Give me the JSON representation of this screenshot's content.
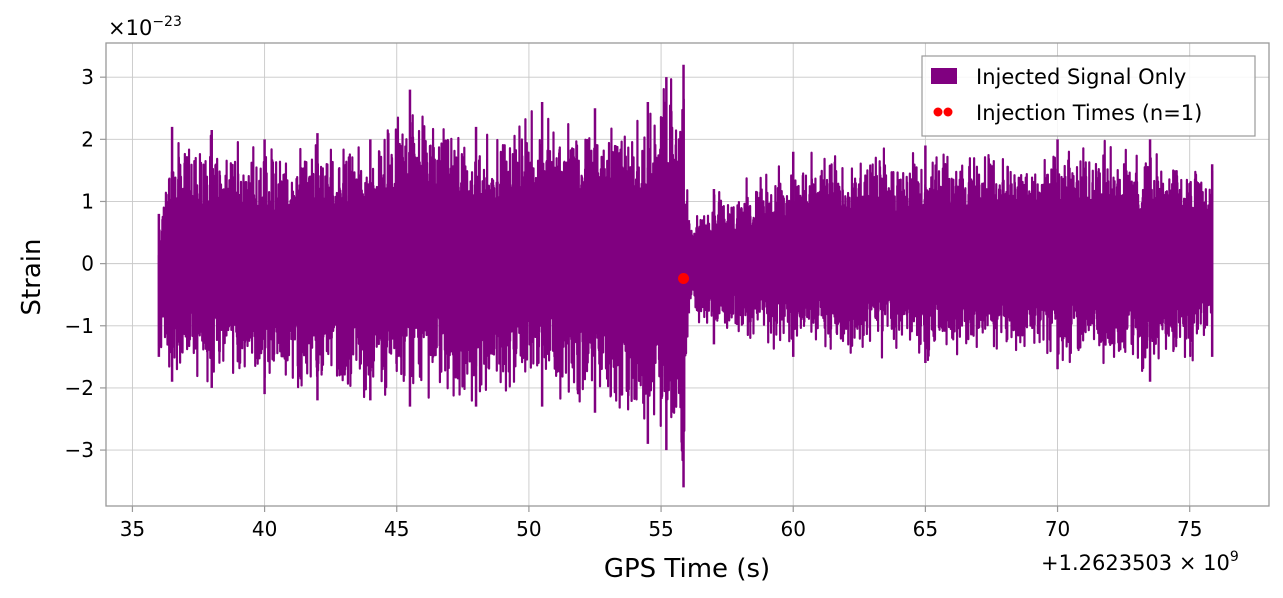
{
  "chart_data": {
    "type": "line",
    "title": "",
    "xlabel": "GPS Time (s)",
    "ylabel": "Strain",
    "xlim": [
      34,
      78
    ],
    "ylim": [
      -3.9,
      3.55
    ],
    "grid": true,
    "x_ticks": [
      35,
      40,
      45,
      50,
      55,
      60,
      65,
      70,
      75
    ],
    "x_tick_labels": [
      "35",
      "40",
      "45",
      "50",
      "55",
      "60",
      "65",
      "70",
      "75"
    ],
    "y_ticks": [
      3,
      2,
      1,
      0,
      -1,
      -2,
      -3
    ],
    "y_tick_labels": [
      "3",
      "2",
      "1",
      "0",
      "−1",
      "−2",
      "−3"
    ],
    "y_multiplier": {
      "base": "×10",
      "exp": "−23"
    },
    "x_offset": {
      "base": "+1.2623503 × 10",
      "exp": "9"
    },
    "legend_placement": "top-right",
    "series": [
      {
        "name": "Injected Signal Only",
        "color": "#800080",
        "x_range": [
          36.0,
          75.85
        ],
        "envelope": [
          {
            "x": 36.0,
            "ymin": -1.5,
            "ymax": 0.8
          },
          {
            "x": 36.5,
            "ymin": -1.9,
            "ymax": 2.2
          },
          {
            "x": 38.0,
            "ymin": -2.0,
            "ymax": 2.15
          },
          {
            "x": 40.0,
            "ymin": -2.1,
            "ymax": 2.0
          },
          {
            "x": 42.0,
            "ymin": -2.2,
            "ymax": 2.1
          },
          {
            "x": 44.0,
            "ymin": -2.2,
            "ymax": 2.0
          },
          {
            "x": 45.5,
            "ymin": -2.3,
            "ymax": 2.8
          },
          {
            "x": 48.0,
            "ymin": -2.3,
            "ymax": 2.2
          },
          {
            "x": 50.5,
            "ymin": -2.3,
            "ymax": 2.6
          },
          {
            "x": 52.5,
            "ymin": -2.4,
            "ymax": 2.5
          },
          {
            "x": 54.5,
            "ymin": -2.9,
            "ymax": 2.6
          },
          {
            "x": 55.2,
            "ymin": -3.0,
            "ymax": 3.0
          },
          {
            "x": 55.85,
            "ymin": -3.6,
            "ymax": 3.2
          },
          {
            "x": 56.05,
            "ymin": -0.8,
            "ymax": 0.7
          },
          {
            "x": 57.0,
            "ymin": -1.3,
            "ymax": 1.2
          },
          {
            "x": 60.0,
            "ymin": -1.5,
            "ymax": 1.8
          },
          {
            "x": 65.0,
            "ymin": -1.6,
            "ymax": 1.9
          },
          {
            "x": 70.0,
            "ymin": -1.7,
            "ymax": 2.0
          },
          {
            "x": 73.5,
            "ymin": -1.9,
            "ymax": 2.0
          },
          {
            "x": 75.85,
            "ymin": -1.5,
            "ymax": 1.6
          }
        ]
      },
      {
        "name": "Injection Times (n=1)",
        "color": "#ff0000",
        "type": "scatter",
        "points": [
          {
            "x": 55.85,
            "y": -0.24
          }
        ]
      }
    ]
  }
}
